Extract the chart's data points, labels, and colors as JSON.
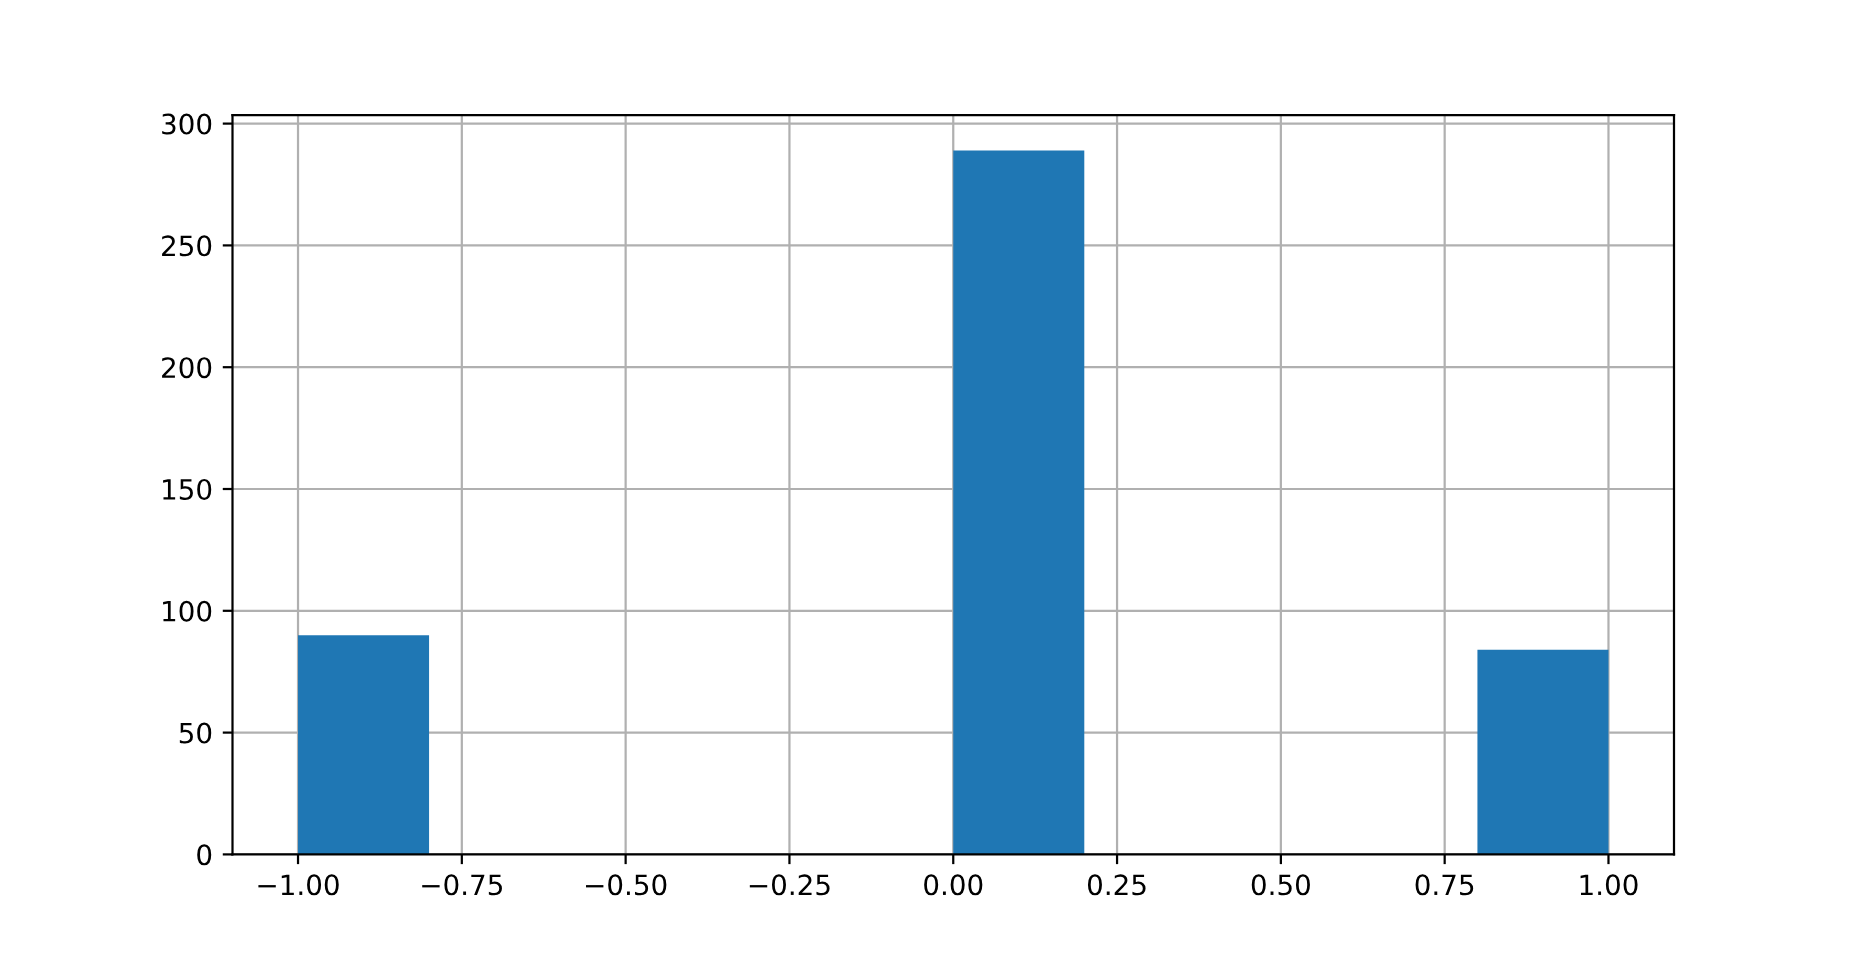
{
  "chart_data": {
    "type": "histogram",
    "bins": [
      -1.0,
      -0.8,
      -0.6,
      -0.4,
      -0.2,
      0.0,
      0.2,
      0.4,
      0.6,
      0.8,
      1.0
    ],
    "values": [
      90,
      0,
      0,
      0,
      0,
      289,
      0,
      0,
      0,
      84
    ],
    "color": "#1f77b4",
    "xlim": [
      -1.1,
      1.1
    ],
    "ylim": [
      0,
      303.45
    ],
    "xticks": [
      {
        "value": -1.0,
        "label": "−1.00"
      },
      {
        "value": -0.75,
        "label": "−0.75"
      },
      {
        "value": -0.5,
        "label": "−0.50"
      },
      {
        "value": -0.25,
        "label": "−0.25"
      },
      {
        "value": 0.0,
        "label": "0.00"
      },
      {
        "value": 0.25,
        "label": "0.25"
      },
      {
        "value": 0.5,
        "label": "0.50"
      },
      {
        "value": 0.75,
        "label": "0.75"
      },
      {
        "value": 1.0,
        "label": "1.00"
      }
    ],
    "yticks": [
      0,
      50,
      100,
      150,
      200,
      250,
      300
    ],
    "grid": true
  }
}
